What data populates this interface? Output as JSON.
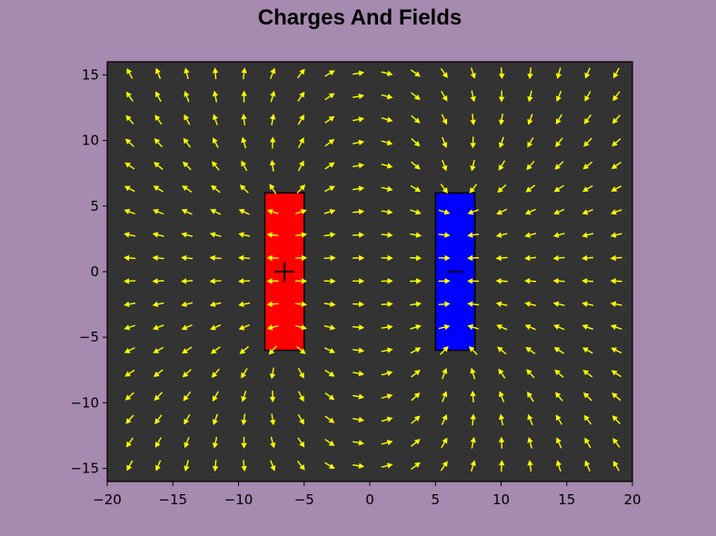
{
  "colors": {
    "figure_background": "#a68aaf",
    "plot_background": "#333333",
    "arrow": "#ffff00",
    "positive_charge": "#ff0000",
    "negative_charge": "#0000ff",
    "marker": "#000000"
  },
  "chart_data": {
    "type": "quiver",
    "title": "Charges And Fields",
    "xlabel": "",
    "ylabel": "",
    "xlim": [
      -20,
      20
    ],
    "ylim": [
      -16,
      16
    ],
    "xticks": [
      -20,
      -15,
      -10,
      -5,
      0,
      5,
      10,
      15,
      20
    ],
    "yticks": [
      -15,
      -10,
      -5,
      0,
      5,
      10,
      15
    ],
    "xtick_labels": [
      "−20",
      "−15",
      "−10",
      "−5",
      "0",
      "5",
      "10",
      "15",
      "20"
    ],
    "ytick_labels": [
      "−15",
      "−10",
      "−5",
      "0",
      "5",
      "10",
      "15"
    ],
    "grid": false,
    "field": {
      "x_start": -18.3,
      "x_step": 2.18,
      "x_count": 18,
      "y_start": -14.8,
      "y_step": 1.76,
      "y_count": 18
    },
    "charges": [
      {
        "name": "positive",
        "x_range": [
          -8,
          -5
        ],
        "y_range": [
          -6,
          6
        ],
        "sign": 1,
        "marker": "+",
        "marker_x": -6.5,
        "marker_y": 0,
        "color": "#ff0000"
      },
      {
        "name": "negative",
        "x_range": [
          5,
          8
        ],
        "y_range": [
          -6,
          6
        ],
        "sign": -1,
        "marker": "−",
        "marker_x": 6.5,
        "marker_y": 0,
        "color": "#0000ff"
      }
    ]
  }
}
